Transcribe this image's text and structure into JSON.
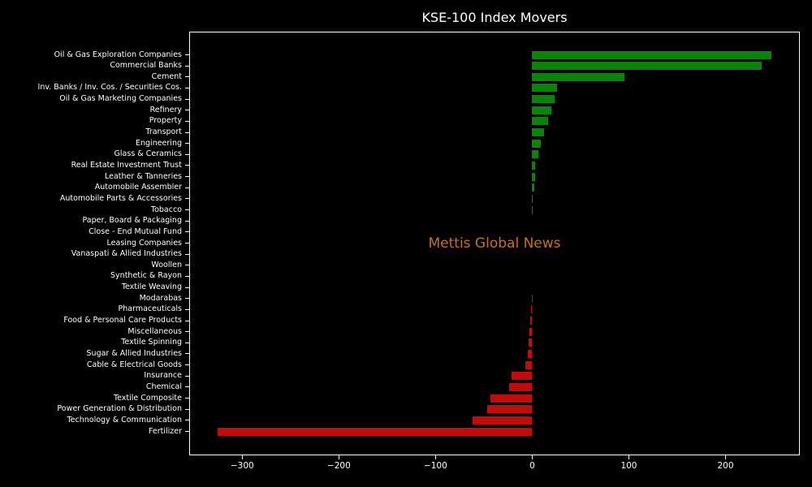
{
  "window": {
    "title": "KSE-100 Index Movers"
  },
  "chart_data": {
    "type": "bar",
    "orientation": "horizontal",
    "title": "KSE-100 Index Movers",
    "watermark": "Mettis Global News",
    "xlabel": "",
    "ylabel": "",
    "grid": false,
    "background_color": "#000000",
    "text_color": "#ffffff",
    "positive_color": "#0b830b",
    "negative_color": "#c00c0c",
    "watermark_color": "#c9701e",
    "xlim": [
      -354,
      276
    ],
    "x_ticks": [
      -300,
      -200,
      -100,
      0,
      100,
      200
    ],
    "x_tick_labels": [
      "−300",
      "−200",
      "−100",
      "0",
      "100",
      "200"
    ],
    "categories": [
      "Oil & Gas Exploration Companies",
      "Commercial Banks",
      "Cement",
      "Inv. Banks / Inv. Cos. / Securities Cos.",
      "Oil & Gas Marketing Companies",
      "Refinery",
      "Property",
      "Transport",
      "Engineering",
      "Glass & Ceramics",
      "Real Estate Investment Trust",
      "Leather & Tanneries",
      "Automobile Assembler",
      "Automobile Parts & Accessories",
      "Tobacco",
      "Paper, Board & Packaging",
      "Close - End Mutual Fund",
      "Leasing Companies",
      "Vanaspati & Allied Industries",
      "Woollen",
      "Synthetic & Rayon",
      "Textile Weaving",
      "Modarabas",
      "Pharmaceuticals",
      "Food & Personal Care Products",
      "Miscellaneous",
      "Textile Spinning",
      "Sugar & Allied Industries",
      "Cable & Electrical Goods",
      "Insurance",
      "Chemical",
      "Textile Composite",
      "Power Generation & Distribution",
      "Technology & Communication",
      "Fertilizer"
    ],
    "values": [
      247.3,
      237.4,
      95.1,
      26.0,
      22.9,
      20.1,
      16.5,
      12.0,
      8.7,
      6.4,
      3.1,
      2.9,
      2.0,
      0.9,
      0.7,
      0.0,
      0.0,
      0.0,
      0.0,
      0.0,
      0.0,
      0.0,
      -0.4,
      -1.0,
      -1.8,
      -2.9,
      -3.8,
      -4.6,
      -7.4,
      -21.2,
      -24.0,
      -43.6,
      -46.3,
      -61.7,
      -325.6
    ]
  }
}
